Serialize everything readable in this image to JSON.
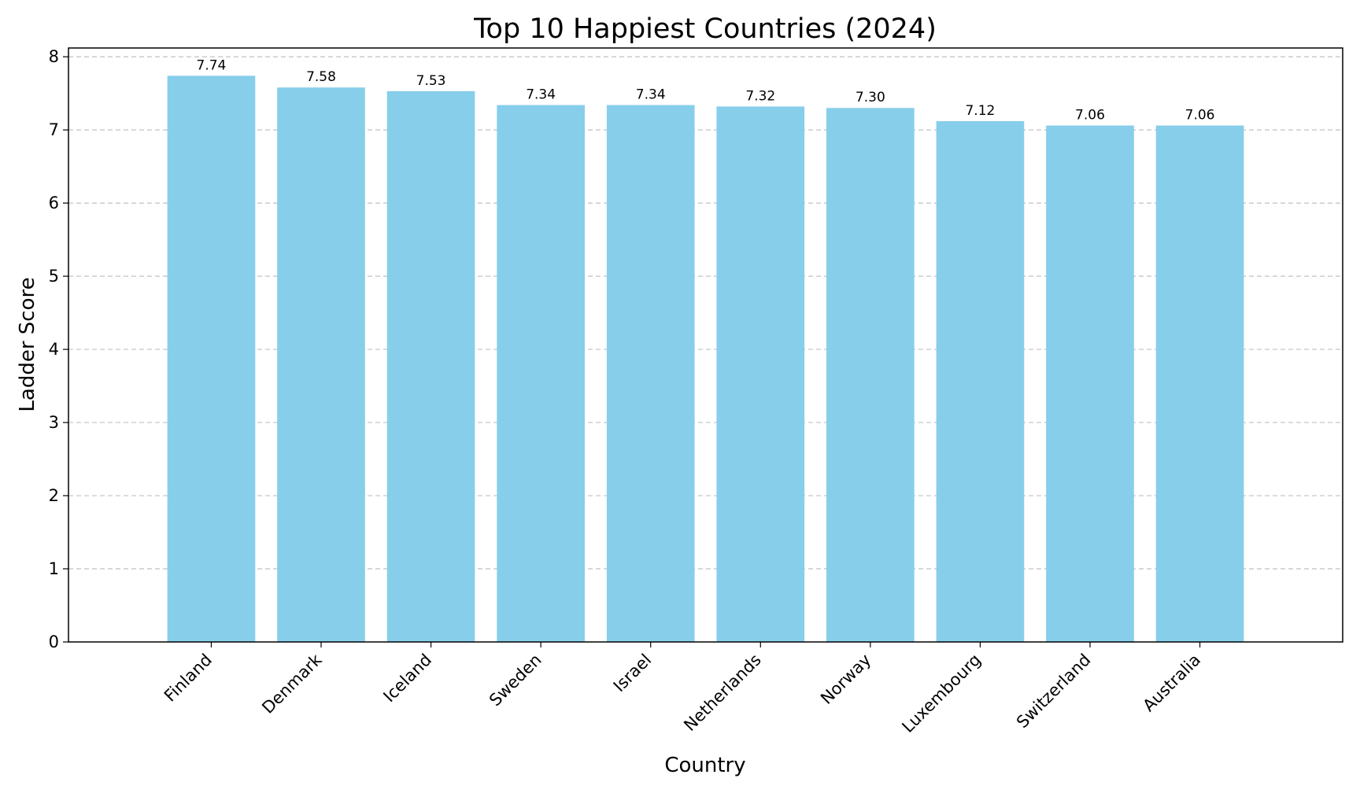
{
  "chart_data": {
    "type": "bar",
    "title": "Top 10 Happiest Countries (2024)",
    "xlabel": "Country",
    "ylabel": "Ladder Score",
    "categories": [
      "Finland",
      "Denmark",
      "Iceland",
      "Sweden",
      "Israel",
      "Netherlands",
      "Norway",
      "Luxembourg",
      "Switzerland",
      "Australia"
    ],
    "values": [
      7.74,
      7.58,
      7.53,
      7.34,
      7.34,
      7.32,
      7.3,
      7.12,
      7.06,
      7.06
    ],
    "value_labels": [
      "7.74",
      "7.58",
      "7.53",
      "7.34",
      "7.34",
      "7.32",
      "7.30",
      "7.12",
      "7.06",
      "7.06"
    ],
    "ylim": [
      0,
      8.12
    ],
    "yticks": [
      0,
      1,
      2,
      3,
      4,
      5,
      6,
      7,
      8
    ],
    "grid": "y-dashed",
    "bar_color": "#87CEEB",
    "grid_color": "#c0c0c0"
  }
}
